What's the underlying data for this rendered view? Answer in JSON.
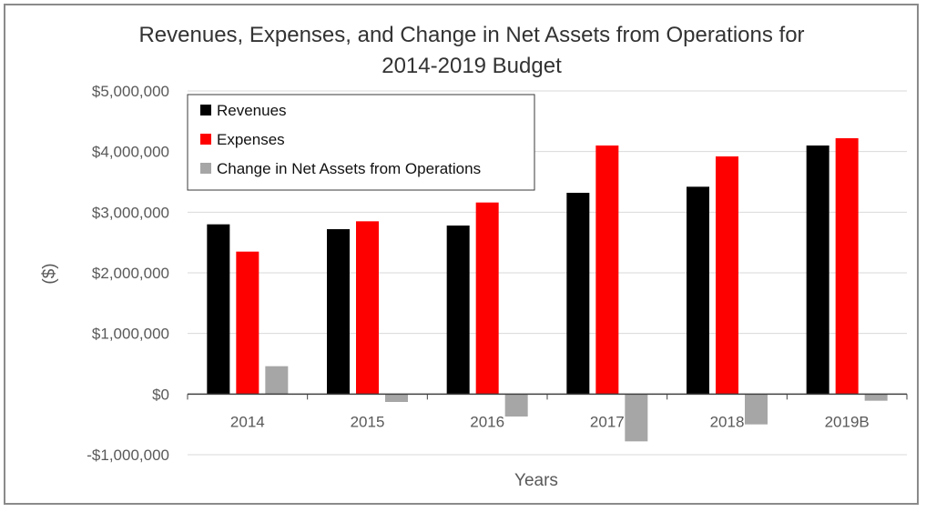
{
  "chart_data": {
    "type": "bar",
    "title_lines": [
      "Revenues, Expenses, and Change in Net Assets from Operations for",
      "2014-2019 Budget"
    ],
    "xlabel": "Years",
    "ylabel": "($)",
    "categories": [
      "2014",
      "2015",
      "2016",
      "2017",
      "2018",
      "2019B"
    ],
    "ylim": [
      -1000000,
      5000000
    ],
    "y_ticks": [
      5000000,
      4000000,
      3000000,
      2000000,
      1000000,
      0,
      -1000000
    ],
    "y_tick_labels": [
      "$5,000,000",
      "$4,000,000",
      "$3,000,000",
      "$2,000,000",
      "$1,000,000",
      "$0",
      "-$1,000,000"
    ],
    "grid": true,
    "legend_position": "top-left",
    "series": [
      {
        "name": "Revenues",
        "color": "#000000",
        "values": [
          2800000,
          2720000,
          2780000,
          3320000,
          3420000,
          4100000
        ]
      },
      {
        "name": "Expenses",
        "color": "#ff0000",
        "values": [
          2350000,
          2850000,
          3160000,
          4100000,
          3920000,
          4220000
        ]
      },
      {
        "name": "Change in Net Assets from Operations",
        "color": "#a6a6a6",
        "values": [
          460000,
          -130000,
          -370000,
          -780000,
          -500000,
          -110000
        ]
      }
    ]
  }
}
